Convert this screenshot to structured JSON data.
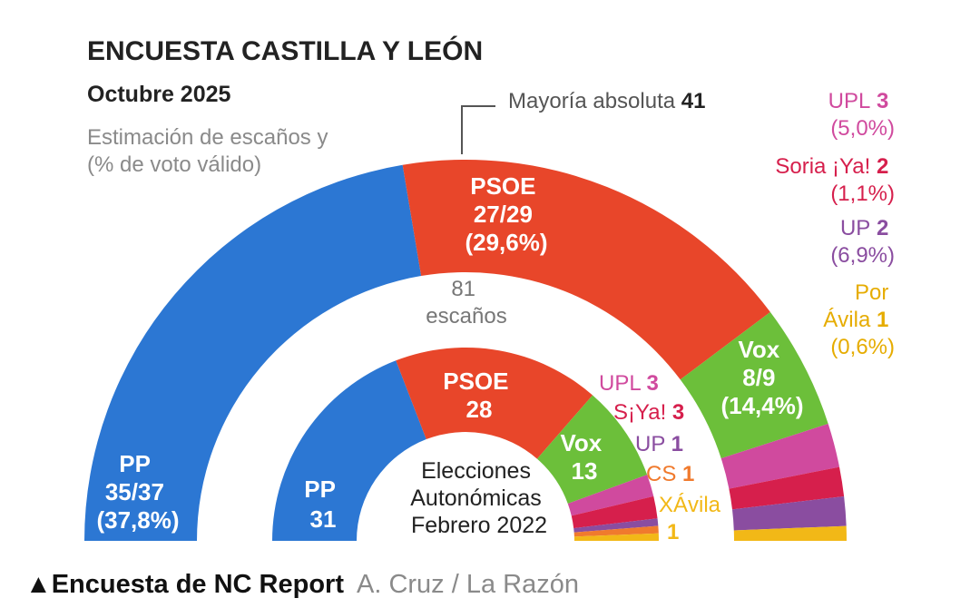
{
  "header": {
    "title": "ENCUESTA CASTILLA Y LEÓN",
    "date": "Octubre 2025",
    "description_line1": "Estimación de escaños y",
    "description_line2": "(% de voto válido)"
  },
  "majority": {
    "label": "Mayoría absoluta",
    "value": "41"
  },
  "outer_total": {
    "number": "81",
    "unit": "escaños"
  },
  "inner_title": [
    "Elecciones",
    "Autonómicas",
    "Febrero 2022"
  ],
  "footer": {
    "source": "▲Encuesta de NC Report",
    "authors": "A. Cruz  /  La Razón"
  },
  "colors": {
    "PP": "#2c77d3",
    "PSOE": "#e8462a",
    "Vox": "#6cbf3a",
    "UPL": "#d04a9e",
    "Soria": "#d61f4c",
    "UP": "#8a4da0",
    "CS": "#f07a2d",
    "Avila": "#f2b817"
  },
  "chart_data": [
    {
      "type": "pie",
      "title": "ENCUESTA CASTILLA Y LEÓN",
      "subtitle": "Octubre 2025",
      "total_seats": 81,
      "majority": 41,
      "segments": [
        {
          "party": "PP",
          "seats": 36,
          "seats_label": "35/37",
          "vote_label": "(37,8%)",
          "vote_pct": 37.8
        },
        {
          "party": "PSOE",
          "seats": 28,
          "seats_label": "27/29",
          "vote_label": "(29,6%)",
          "vote_pct": 29.6
        },
        {
          "party": "Vox",
          "seats": 8.5,
          "seats_label": "8/9",
          "vote_label": "(14,4%)",
          "vote_pct": 14.4
        },
        {
          "party": "UPL",
          "seats": 3,
          "seats_label": "3",
          "vote_label": "(5,0%)",
          "vote_pct": 5.0
        },
        {
          "party": "Soria ¡Ya!",
          "seats": 2,
          "seats_label": "2",
          "vote_label": "(1,1%)",
          "vote_pct": 1.1
        },
        {
          "party": "UP",
          "seats": 2,
          "seats_label": "2",
          "vote_label": "(6,9%)",
          "vote_pct": 6.9
        },
        {
          "party": "Por Ávila",
          "seats": 1,
          "seats_label": "1",
          "vote_label": "(0,6%)",
          "vote_pct": 0.6
        }
      ]
    },
    {
      "type": "pie",
      "title": "Elecciones Autonómicas Febrero 2022",
      "total_seats": 81,
      "segments": [
        {
          "party": "PP",
          "seats": 31
        },
        {
          "party": "PSOE",
          "seats": 28
        },
        {
          "party": "Vox",
          "seats": 13
        },
        {
          "party": "UPL",
          "seats": 3,
          "label": "UPL"
        },
        {
          "party": "S¡Ya!",
          "seats": 3,
          "label": "S¡Ya!"
        },
        {
          "party": "UP",
          "seats": 1,
          "label": "UP"
        },
        {
          "party": "CS",
          "seats": 1,
          "label": "CS"
        },
        {
          "party": "XÁvila",
          "seats": 1,
          "label": "XÁvila"
        }
      ]
    }
  ]
}
